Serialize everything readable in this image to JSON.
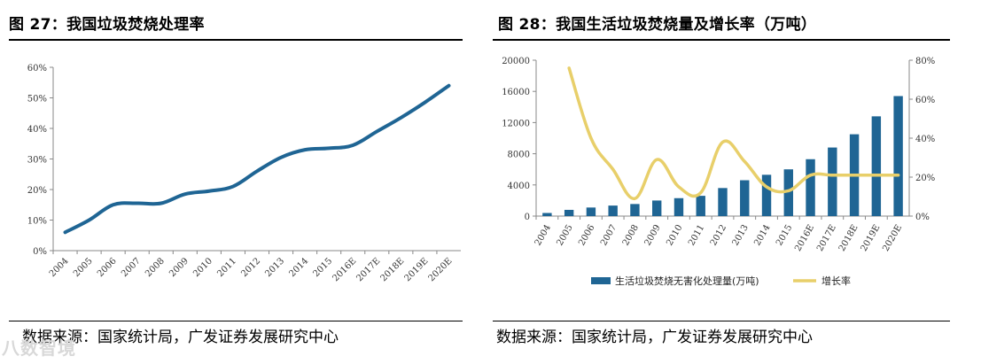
{
  "left": {
    "title": "图 27：我国垃圾焚烧处理率",
    "source": "数据来源：国家统计局，广发证券发展研究中心"
  },
  "right": {
    "title": "图 28：我国生活垃圾焚烧量及增长率（万吨）",
    "source": "数据来源：国家统计局，广发证券发展研究中心"
  },
  "watermark": "八数智境",
  "colors": {
    "bar": "#1f6594",
    "line_left": "#1f6594",
    "line_right": "#e8cf6a",
    "axis": "#888888"
  },
  "chart_data": [
    {
      "type": "line",
      "title": "我国垃圾焚烧处理率",
      "categories": [
        "2004",
        "2005",
        "2006",
        "2007",
        "2008",
        "2009",
        "2010",
        "2011",
        "2012",
        "2013",
        "2014",
        "2015",
        "2016E",
        "2017E",
        "2018E",
        "2019E",
        "2020E"
      ],
      "series": [
        {
          "name": "垃圾焚烧处理率",
          "values": [
            6,
            10,
            15,
            15.5,
            15.5,
            18.5,
            19.5,
            21,
            26,
            30.5,
            33,
            33.5,
            34.5,
            39,
            43.5,
            48.5,
            54
          ]
        }
      ],
      "yticks": [
        "0%",
        "10%",
        "20%",
        "30%",
        "40%",
        "50%",
        "60%"
      ],
      "ylim": [
        0,
        60
      ]
    },
    {
      "type": "bar+line",
      "title": "我国生活垃圾焚烧量及增长率（万吨）",
      "categories": [
        "2004",
        "2005",
        "2006",
        "2007",
        "2008",
        "2009",
        "2010",
        "2011",
        "2012",
        "2013",
        "2014",
        "2015",
        "2016E",
        "2017E",
        "2018E",
        "2019E",
        "2020E"
      ],
      "series": [
        {
          "name": "生活垃圾焚烧无害化处理量(万吨)",
          "axis": "left",
          "kind": "bar",
          "values": [
            400,
            800,
            1100,
            1350,
            1550,
            2000,
            2300,
            2600,
            3600,
            4600,
            5300,
            6000,
            7300,
            8800,
            10500,
            12800,
            15400
          ]
        },
        {
          "name": "增长率",
          "axis": "right",
          "kind": "line",
          "values": [
            null,
            76,
            40,
            24,
            9,
            29,
            15,
            12,
            38,
            28,
            15,
            13,
            21,
            21,
            21,
            21,
            21
          ]
        }
      ],
      "yticks_left": [
        "0",
        "4000",
        "8000",
        "12000",
        "16000",
        "20000"
      ],
      "ylim_left": [
        0,
        20000
      ],
      "yticks_right": [
        "0%",
        "20%",
        "40%",
        "60%",
        "80%"
      ],
      "ylim_right": [
        0,
        80
      ],
      "legend": [
        "生活垃圾焚烧无害化处理量(万吨)",
        "增长率"
      ]
    }
  ]
}
